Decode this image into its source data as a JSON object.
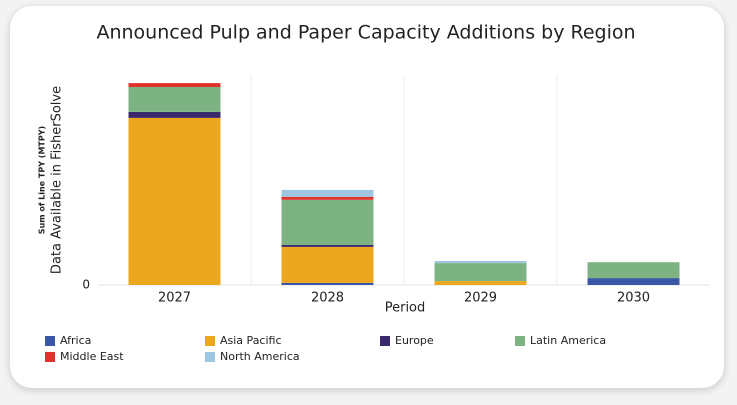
{
  "chart_data": {
    "type": "stacked_bar",
    "title": "Announced Pulp and Paper Capacity Additions by Region",
    "y_label_small": "Sum of Line TPY (MTPY)",
    "y_label": "Data Available in FisherSolve",
    "x_label": "Period",
    "categories": [
      "2027",
      "2028",
      "2029",
      "2030"
    ],
    "series": [
      {
        "name": "Africa",
        "color": "#3a57a7",
        "values": [
          0,
          0.07,
          0,
          0.23
        ]
      },
      {
        "name": "Asia Pacific",
        "color": "#eda71f",
        "values": [
          5.57,
          1.2,
          0.13,
          0
        ]
      },
      {
        "name": "Europe",
        "color": "#3b2a6b",
        "values": [
          0.2,
          0.07,
          0,
          0
        ]
      },
      {
        "name": "Latin America",
        "color": "#7db382",
        "values": [
          0.83,
          1.5,
          0.6,
          0.53
        ]
      },
      {
        "name": "Middle East",
        "color": "#e0322e",
        "values": [
          0.13,
          0.1,
          0,
          0
        ]
      },
      {
        "name": "North America",
        "color": "#9dc6e0",
        "values": [
          0,
          0.23,
          0.07,
          0
        ]
      }
    ],
    "ylim": [
      0,
      7
    ],
    "yticks": [
      0
    ],
    "grid": true
  }
}
